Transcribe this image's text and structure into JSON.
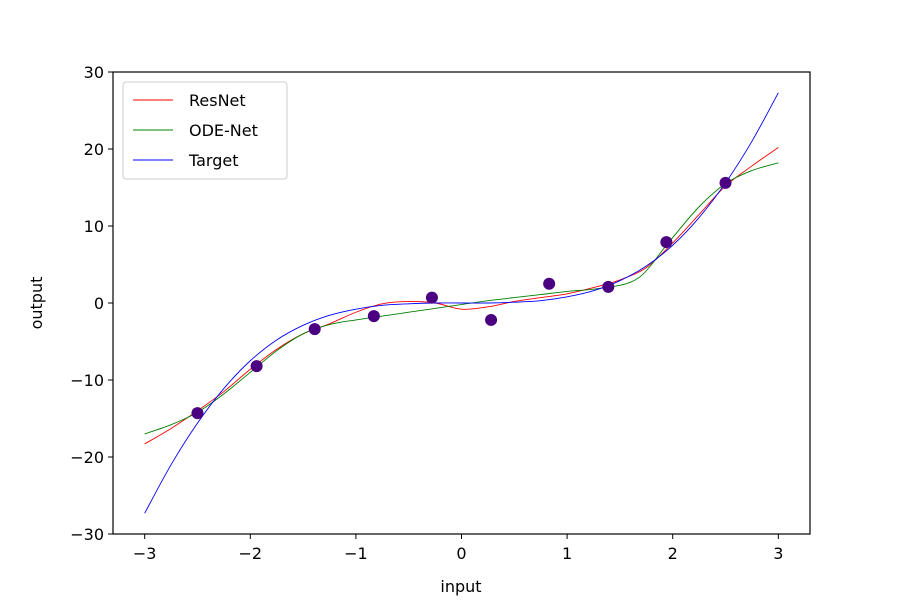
{
  "chart_data": {
    "type": "line",
    "xlabel": "input",
    "ylabel": "output",
    "xlim": [
      -3.3,
      3.3
    ],
    "ylim": [
      -30,
      30
    ],
    "xticks": [
      -3,
      -2,
      -1,
      0,
      1,
      2,
      3
    ],
    "xtick_labels": [
      "−3",
      "−2",
      "−1",
      "0",
      "1",
      "2",
      "3"
    ],
    "yticks": [
      -30,
      -20,
      -10,
      0,
      10,
      20,
      30
    ],
    "ytick_labels": [
      "−30",
      "−20",
      "−10",
      "0",
      "10",
      "20",
      "30"
    ],
    "grid": false,
    "legend_position": "top-left",
    "series": [
      {
        "name": "ResNet",
        "color": "#ff0000",
        "x": [
          -3.0,
          -2.75,
          -2.5,
          -2.25,
          -2.0,
          -1.75,
          -1.5,
          -1.25,
          -1.0,
          -0.75,
          -0.5,
          -0.25,
          0.0,
          0.25,
          0.5,
          0.75,
          1.0,
          1.25,
          1.5,
          1.75,
          2.0,
          2.25,
          2.5,
          2.75,
          3.0
        ],
        "y": [
          -18.3,
          -16.3,
          -14.0,
          -11.5,
          -8.6,
          -6.0,
          -4.0,
          -2.7,
          -1.2,
          -0.1,
          0.2,
          0.0,
          -0.8,
          -0.5,
          0.2,
          0.7,
          1.2,
          2.0,
          3.0,
          4.6,
          7.8,
          11.5,
          15.2,
          17.8,
          20.2
        ]
      },
      {
        "name": "ODE-Net",
        "color": "#008000",
        "x": [
          -3.0,
          -2.75,
          -2.5,
          -2.25,
          -2.0,
          -1.75,
          -1.5,
          -1.25,
          -1.0,
          -0.75,
          -0.5,
          -0.25,
          0.0,
          0.25,
          0.5,
          0.75,
          1.0,
          1.25,
          1.5,
          1.6,
          1.7,
          1.8,
          1.9,
          2.0,
          2.25,
          2.5,
          2.75,
          3.0
        ],
        "y": [
          -17.0,
          -15.8,
          -14.2,
          -11.8,
          -9.0,
          -6.2,
          -4.0,
          -2.8,
          -2.2,
          -1.7,
          -1.2,
          -0.7,
          -0.2,
          0.3,
          0.7,
          1.1,
          1.5,
          1.8,
          2.3,
          2.7,
          3.5,
          5.0,
          6.8,
          8.5,
          12.5,
          15.5,
          17.2,
          18.2
        ]
      },
      {
        "name": "Target",
        "color": "#0000ff",
        "x": [
          -3.0,
          -2.75,
          -2.5,
          -2.25,
          -2.0,
          -1.75,
          -1.5,
          -1.25,
          -1.0,
          -0.75,
          -0.5,
          -0.25,
          0.0,
          0.25,
          0.5,
          0.75,
          1.0,
          1.25,
          1.5,
          1.75,
          2.0,
          2.25,
          2.5,
          2.75,
          3.0
        ],
        "y": [
          -27.3,
          -21.0,
          -15.6,
          -11.1,
          -7.5,
          -4.8,
          -2.9,
          -1.6,
          -0.8,
          -0.3,
          -0.1,
          0.0,
          0.0,
          0.0,
          0.1,
          0.3,
          0.8,
          1.6,
          2.9,
          4.8,
          7.5,
          11.1,
          15.6,
          21.0,
          27.3
        ]
      }
    ],
    "scatter": {
      "color": "#4b0082",
      "x": [
        -2.5,
        -1.94,
        -1.39,
        -0.83,
        -0.28,
        0.28,
        0.83,
        1.39,
        1.94,
        2.5
      ],
      "y": [
        -14.3,
        -8.2,
        -3.4,
        -1.7,
        0.7,
        -2.2,
        2.5,
        2.1,
        7.9,
        15.6
      ]
    }
  }
}
